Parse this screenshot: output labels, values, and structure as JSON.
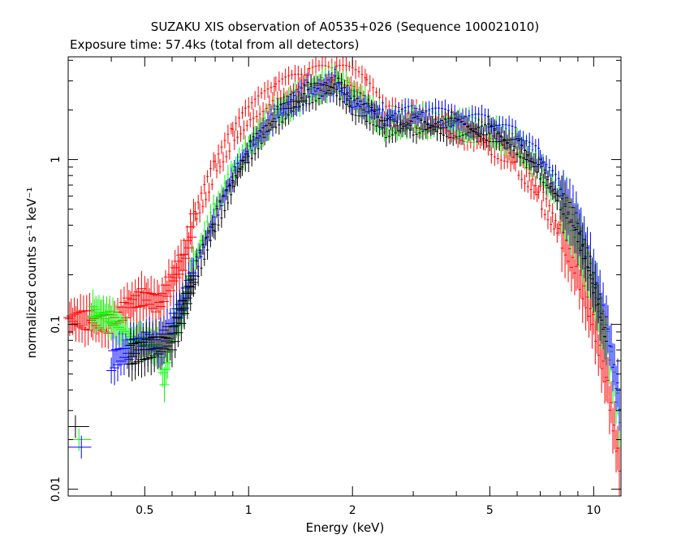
{
  "chart_data": {
    "type": "scatter",
    "title": "SUZAKU XIS observation of A0535+026 (Sequence 100021010)",
    "subtitle": "Exposure time: 57.4ks (total from all detectors)",
    "xlabel": "Energy (keV)",
    "ylabel": "normalized counts s⁻¹ keV⁻¹",
    "xscale": "log",
    "yscale": "log",
    "xlim": [
      0.3,
      12
    ],
    "ylim": [
      0.0091,
      4.2
    ],
    "xticks": [
      {
        "value": 0.5,
        "label": "0.5"
      },
      {
        "value": 1,
        "label": "1"
      },
      {
        "value": 2,
        "label": "2"
      },
      {
        "value": 5,
        "label": "5"
      },
      {
        "value": 10,
        "label": "10"
      }
    ],
    "yticks": [
      {
        "value": 0.01,
        "label": "0.01"
      },
      {
        "value": 0.1,
        "label": "0.1"
      },
      {
        "value": 1,
        "label": "1"
      }
    ],
    "grid": false,
    "series": [
      {
        "color": "#ff0000",
        "points": [
          [
            0.3,
            0.11
          ],
          [
            0.35,
            0.105
          ],
          [
            0.4,
            0.1
          ],
          [
            0.45,
            0.13
          ],
          [
            0.5,
            0.15
          ],
          [
            0.55,
            0.13
          ],
          [
            0.6,
            0.19
          ],
          [
            0.65,
            0.25
          ],
          [
            0.7,
            0.45
          ],
          [
            0.8,
            0.9
          ],
          [
            0.9,
            1.4
          ],
          [
            1.0,
            1.9
          ],
          [
            1.2,
            2.6
          ],
          [
            1.5,
            3.2
          ],
          [
            1.8,
            3.3
          ],
          [
            2.0,
            3.2
          ],
          [
            2.2,
            2.7
          ],
          [
            2.5,
            1.85
          ],
          [
            3.0,
            1.8
          ],
          [
            4.0,
            1.55
          ],
          [
            5.0,
            1.25
          ],
          [
            6.0,
            0.95
          ],
          [
            7.0,
            0.6
          ],
          [
            8.0,
            0.35
          ],
          [
            9.0,
            0.2
          ],
          [
            10.0,
            0.1
          ],
          [
            11.0,
            0.04
          ],
          [
            12.0,
            0.012
          ]
        ]
      },
      {
        "color": "#00ff00",
        "points": [
          [
            0.35,
            0.12
          ],
          [
            0.4,
            0.11
          ],
          [
            0.45,
            0.08
          ],
          [
            0.5,
            0.08
          ],
          [
            0.55,
            0.07
          ],
          [
            0.57,
            0.045
          ],
          [
            0.6,
            0.09
          ],
          [
            0.65,
            0.13
          ],
          [
            0.7,
            0.25
          ],
          [
            0.8,
            0.5
          ],
          [
            0.9,
            0.85
          ],
          [
            1.0,
            1.2
          ],
          [
            1.2,
            1.9
          ],
          [
            1.5,
            2.6
          ],
          [
            1.8,
            3.0
          ],
          [
            2.0,
            2.5
          ],
          [
            2.2,
            2.1
          ],
          [
            2.5,
            1.65
          ],
          [
            3.0,
            1.75
          ],
          [
            4.0,
            1.65
          ],
          [
            5.0,
            1.5
          ],
          [
            6.0,
            1.25
          ],
          [
            7.0,
            0.9
          ],
          [
            8.0,
            0.6
          ],
          [
            9.0,
            0.35
          ],
          [
            10.0,
            0.18
          ],
          [
            11.0,
            0.08
          ],
          [
            12.0,
            0.025
          ]
        ]
      },
      {
        "color": "#0000ff",
        "points": [
          [
            0.4,
            0.06
          ],
          [
            0.45,
            0.07
          ],
          [
            0.5,
            0.08
          ],
          [
            0.55,
            0.075
          ],
          [
            0.6,
            0.1
          ],
          [
            0.65,
            0.14
          ],
          [
            0.7,
            0.22
          ],
          [
            0.8,
            0.45
          ],
          [
            0.9,
            0.8
          ],
          [
            1.0,
            1.15
          ],
          [
            1.2,
            1.85
          ],
          [
            1.5,
            2.6
          ],
          [
            1.8,
            2.85
          ],
          [
            2.0,
            2.2
          ],
          [
            2.2,
            2.05
          ],
          [
            2.5,
            1.8
          ],
          [
            3.0,
            1.85
          ],
          [
            4.0,
            1.75
          ],
          [
            5.0,
            1.6
          ],
          [
            6.0,
            1.35
          ],
          [
            7.0,
            1.0
          ],
          [
            8.0,
            0.65
          ],
          [
            9.0,
            0.4
          ],
          [
            10.0,
            0.2
          ],
          [
            11.0,
            0.09
          ],
          [
            12.0,
            0.03
          ]
        ]
      },
      {
        "color": "#000000",
        "points": [
          [
            0.45,
            0.065
          ],
          [
            0.5,
            0.07
          ],
          [
            0.6,
            0.08
          ],
          [
            0.7,
            0.2
          ],
          [
            0.8,
            0.42
          ],
          [
            1.0,
            1.1
          ],
          [
            1.2,
            1.8
          ],
          [
            1.5,
            2.5
          ],
          [
            1.8,
            2.8
          ],
          [
            2.0,
            2.15
          ],
          [
            2.2,
            1.95
          ],
          [
            2.5,
            1.55
          ],
          [
            3.0,
            1.6
          ],
          [
            4.0,
            1.55
          ],
          [
            5.0,
            1.45
          ],
          [
            6.0,
            1.2
          ],
          [
            7.0,
            0.85
          ],
          [
            8.0,
            0.55
          ],
          [
            9.0,
            0.35
          ],
          [
            10.0,
            0.17
          ],
          [
            11.0,
            0.07
          ]
        ]
      }
    ],
    "legend_markers": [
      {
        "color": "#000000",
        "x_range": [
          0.3,
          0.345
        ],
        "y": 0.024
      },
      {
        "color": "#00ff00",
        "x_range": [
          0.3,
          0.35
        ],
        "y": 0.02
      },
      {
        "color": "#0000ff",
        "x_range": [
          0.3,
          0.35
        ],
        "y": 0.018
      }
    ]
  }
}
